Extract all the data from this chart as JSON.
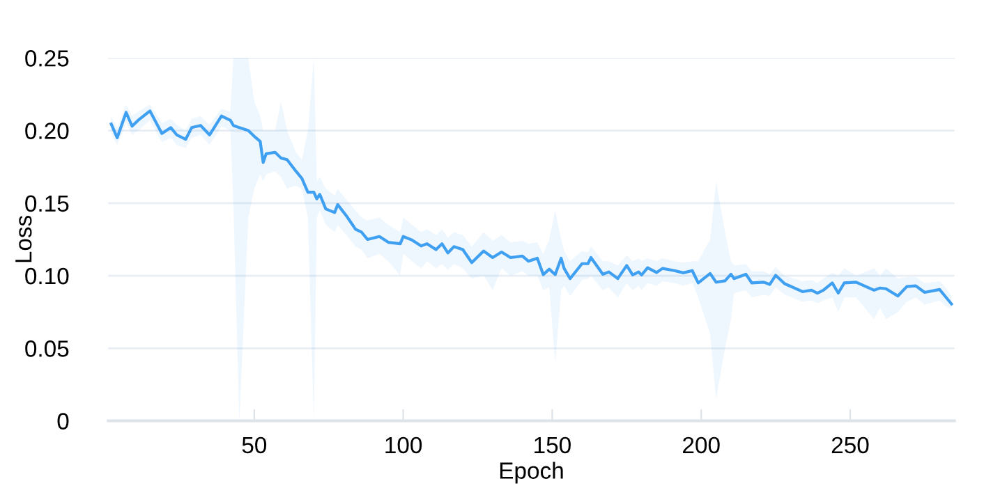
{
  "chart_data": {
    "type": "line",
    "xlabel": "Epoch",
    "ylabel": "Loss",
    "xlim": [
      1,
      285
    ],
    "ylim": [
      0,
      0.25
    ],
    "xticks": [
      50,
      100,
      150,
      200,
      250
    ],
    "yticks": [
      {
        "value": 0,
        "label": "0"
      },
      {
        "value": 0.05,
        "label": "0.05"
      },
      {
        "value": 0.1,
        "label": "0.10"
      },
      {
        "value": 0.15,
        "label": "0.15"
      },
      {
        "value": 0.2,
        "label": "0.20"
      },
      {
        "value": 0.25,
        "label": "0.25"
      }
    ],
    "grid": "y",
    "line_style": "solid",
    "series": [
      {
        "color": "#3fa0f2",
        "x": [
          2,
          4,
          7,
          9,
          11,
          15,
          19,
          22,
          24,
          27,
          29,
          32,
          35,
          39,
          42,
          43,
          45,
          48,
          50,
          52,
          53,
          54,
          57,
          59,
          61,
          64,
          66,
          68,
          70,
          71,
          72,
          74,
          77,
          78,
          81,
          84,
          86,
          88,
          92,
          95,
          99,
          100,
          103,
          106,
          108,
          111,
          113,
          115,
          117,
          120,
          123,
          127,
          130,
          133,
          136,
          140,
          142,
          145,
          147,
          149,
          151,
          153,
          154,
          156,
          160,
          162,
          163,
          167,
          169,
          172,
          175,
          177,
          179,
          180,
          182,
          185,
          187,
          191,
          194,
          197,
          199,
          203,
          205,
          208,
          210,
          211,
          215,
          217,
          221,
          223,
          225,
          228,
          234,
          237,
          239,
          241,
          244,
          246,
          248,
          252,
          258,
          260,
          262,
          266,
          269,
          272,
          275,
          280,
          282,
          284
        ],
        "values": [
          0.2045,
          0.195,
          0.2125,
          0.203,
          0.207,
          0.2135,
          0.198,
          0.202,
          0.197,
          0.194,
          0.202,
          0.2035,
          0.197,
          0.21,
          0.207,
          0.2035,
          0.202,
          0.2,
          0.196,
          0.1925,
          0.178,
          0.184,
          0.185,
          0.181,
          0.18,
          0.172,
          0.167,
          0.1575,
          0.1575,
          0.153,
          0.156,
          0.146,
          0.1435,
          0.149,
          0.141,
          0.132,
          0.13,
          0.125,
          0.127,
          0.123,
          0.122,
          0.127,
          0.1245,
          0.1205,
          0.122,
          0.118,
          0.122,
          0.1157,
          0.12,
          0.118,
          0.109,
          0.117,
          0.1125,
          0.1163,
          0.1125,
          0.1135,
          0.11,
          0.112,
          0.1007,
          0.1045,
          0.1007,
          0.112,
          0.105,
          0.098,
          0.1083,
          0.1083,
          0.1125,
          0.101,
          0.1026,
          0.098,
          0.107,
          0.1005,
          0.1026,
          0.1005,
          0.1055,
          0.1022,
          0.105,
          0.1035,
          0.102,
          0.1035,
          0.095,
          0.1015,
          0.0955,
          0.0965,
          0.101,
          0.098,
          0.101,
          0.095,
          0.0955,
          0.094,
          0.1003,
          0.0945,
          0.089,
          0.09,
          0.088,
          0.09,
          0.095,
          0.088,
          0.095,
          0.0955,
          0.09,
          0.0915,
          0.091,
          0.086,
          0.0925,
          0.093,
          0.0885,
          0.0905,
          0.0855,
          0.0805
        ],
        "lower": [
          0.198,
          0.19,
          0.205,
          0.197,
          0.2,
          0.207,
          0.192,
          0.195,
          0.19,
          0.188,
          0.195,
          0.197,
          0.19,
          0.203,
          0.2,
          0.15,
          0,
          0.14,
          0.16,
          0.17,
          0.165,
          0.17,
          0.172,
          0.168,
          0.16,
          0.162,
          0.16,
          0.14,
          0,
          0.14,
          0.145,
          0.135,
          0.13,
          0.135,
          0.128,
          0.12,
          0.118,
          0.112,
          0.115,
          0.11,
          0.1,
          0.115,
          0.11,
          0.105,
          0.11,
          0.105,
          0.108,
          0.104,
          0.108,
          0.105,
          0.098,
          0.1,
          0.09,
          0.105,
          0.1,
          0.103,
          0.1,
          0.1,
          0.09,
          0.092,
          0.04,
          0.09,
          0.093,
          0.086,
          0.097,
          0.098,
          0.1,
          0.09,
          0.092,
          0.085,
          0.095,
          0.09,
          0.093,
          0.09,
          0.095,
          0.093,
          0.096,
          0.095,
          0.093,
          0.095,
          0.085,
          0.06,
          0.015,
          0.05,
          0.07,
          0.088,
          0.09,
          0.085,
          0.087,
          0.086,
          0.092,
          0.087,
          0.082,
          0.083,
          0.081,
          0.083,
          0.085,
          0.075,
          0.085,
          0.085,
          0.07,
          0.078,
          0.07,
          0.075,
          0.082,
          0.085,
          0.08,
          0.083,
          0.079,
          0.077
        ],
        "upper": [
          0.21,
          0.202,
          0.218,
          0.21,
          0.213,
          0.218,
          0.205,
          0.208,
          0.204,
          0.2,
          0.208,
          0.21,
          0.204,
          0.215,
          0.213,
          0.25,
          0.25,
          0.25,
          0.22,
          0.21,
          0.2,
          0.2,
          0.2,
          0.22,
          0.2,
          0.185,
          0.18,
          0.2,
          0.25,
          0.165,
          0.168,
          0.16,
          0.155,
          0.16,
          0.152,
          0.145,
          0.14,
          0.138,
          0.14,
          0.135,
          0.13,
          0.14,
          0.135,
          0.13,
          0.132,
          0.128,
          0.132,
          0.126,
          0.13,
          0.128,
          0.12,
          0.13,
          0.124,
          0.128,
          0.123,
          0.124,
          0.122,
          0.123,
          0.115,
          0.125,
          0.145,
          0.125,
          0.117,
          0.11,
          0.117,
          0.116,
          0.12,
          0.11,
          0.11,
          0.107,
          0.114,
          0.11,
          0.112,
          0.11,
          0.112,
          0.11,
          0.112,
          0.11,
          0.109,
          0.11,
          0.11,
          0.125,
          0.165,
          0.13,
          0.11,
          0.107,
          0.108,
          0.103,
          0.103,
          0.101,
          0.106,
          0.1,
          0.096,
          0.097,
          0.095,
          0.098,
          0.102,
          0.1,
          0.105,
          0.1,
          0.105,
          0.1,
          0.105,
          0.098,
          0.099,
          0.099,
          0.095,
          0.096,
          0.092,
          0.086
        ]
      }
    ]
  }
}
